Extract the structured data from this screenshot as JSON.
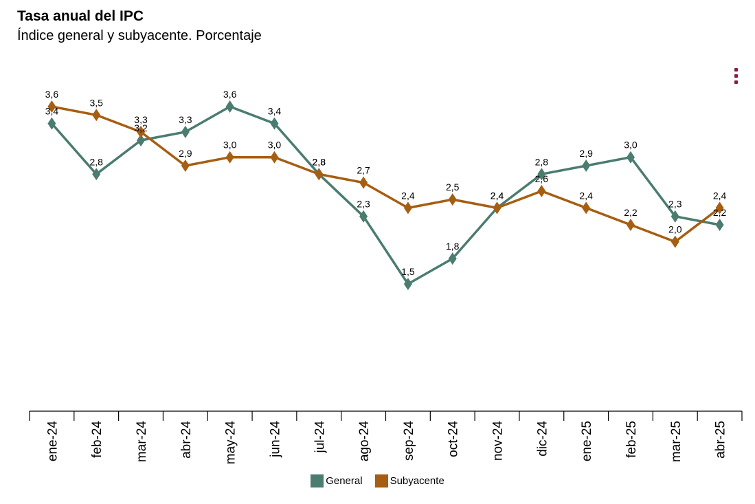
{
  "chart_data": {
    "type": "line",
    "title": "Tasa anual del IPC",
    "subtitle": "Índice general y subyacente. Porcentaje",
    "categories": [
      "ene-24",
      "feb-24",
      "mar-24",
      "abr-24",
      "may-24",
      "jun-24",
      "jul-24",
      "ago-24",
      "sep-24",
      "oct-24",
      "nov-24",
      "dic-24",
      "ene-25",
      "feb-25",
      "mar-25",
      "abr-25"
    ],
    "series": [
      {
        "name": "General",
        "color": "#4a7c70",
        "marker": "diamond",
        "values": [
          3.4,
          2.8,
          3.2,
          3.3,
          3.6,
          3.4,
          2.8,
          2.3,
          1.5,
          1.8,
          2.4,
          2.8,
          2.9,
          3.0,
          2.3,
          2.2
        ]
      },
      {
        "name": "Subyacente",
        "color": "#a65e12",
        "marker": "diamond",
        "values": [
          3.6,
          3.5,
          3.3,
          2.9,
          3.0,
          3.0,
          2.8,
          2.7,
          2.4,
          2.5,
          2.4,
          2.6,
          2.4,
          2.2,
          2.0,
          2.4
        ]
      }
    ],
    "value_labels": {
      "General": [
        "3,4",
        "2,8",
        "3,2",
        "3,3",
        "3,6",
        "3,4",
        "2,8",
        "2,3",
        "1,5",
        "1,8",
        "2,4",
        "2,8",
        "2,9",
        "3,0",
        "2,3",
        "2,2"
      ],
      "Subyacente": [
        "3,6",
        "3,5",
        "3,3",
        "2,9",
        "3,0",
        "3,0",
        "2,8",
        "2,7",
        "2,4",
        "2,5",
        "2,4",
        "2,6",
        "2,4",
        "2,2",
        "2,0",
        "2,4"
      ]
    },
    "legend_position": "bottom-center",
    "grid": false,
    "data_labels": true
  },
  "menu_icon": "vertical-dots-icon"
}
